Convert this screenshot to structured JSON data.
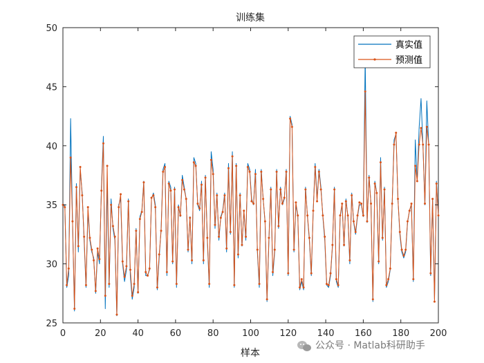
{
  "chart_data": {
    "type": "line",
    "title": "训练集",
    "xlabel": "样本",
    "ylabel": "",
    "xlim": [
      0,
      200
    ],
    "ylim": [
      25,
      50
    ],
    "xticks": [
      "0",
      "20",
      "40",
      "60",
      "80",
      "100",
      "120",
      "140",
      "160",
      "180",
      "200"
    ],
    "yticks": [
      "25",
      "30",
      "35",
      "40",
      "45",
      "50"
    ],
    "grid": false,
    "legend_position": "top-right",
    "series": [
      {
        "name": "真实值",
        "color": "#0072BD",
        "marker": "none",
        "values": [
          35.0,
          35.0,
          28.0,
          29.0,
          42.3,
          33.5,
          26.0,
          36.8,
          31.0,
          38.0,
          36.0,
          32.0,
          28.0,
          34.5,
          32.0,
          31.0,
          30.5,
          27.5,
          31.0,
          30.0,
          36.5,
          40.8,
          26.2,
          37.0,
          28.0,
          35.5,
          33.0,
          32.0,
          25.6,
          35.0,
          35.5,
          30.0,
          28.5,
          29.5,
          35.5,
          29.0,
          27.0,
          28.0,
          33.0,
          27.5,
          34.0,
          34.5,
          37.0,
          29.0,
          29.0,
          29.5,
          35.5,
          36.0,
          35.0,
          27.8,
          30.5,
          33.0,
          38.0,
          38.5,
          29.0,
          37.0,
          36.5,
          30.0,
          36.5,
          28.0,
          35.0,
          34.0,
          37.5,
          36.5,
          35.5,
          31.0,
          34.0,
          30.0,
          39.0,
          38.5,
          35.0,
          34.5,
          37.0,
          30.0,
          37.5,
          32.0,
          28.0,
          39.5,
          38.0,
          33.0,
          36.0,
          32.0,
          34.0,
          34.5,
          36.0,
          31.0,
          38.5,
          32.5,
          39.5,
          28.0,
          38.5,
          30.5,
          36.0,
          31.5,
          34.5,
          32.0,
          38.5,
          38.0,
          35.5,
          35.0,
          38.0,
          31.0,
          28.0,
          38.0,
          35.5,
          33.5,
          26.8,
          32.0,
          36.5,
          29.0,
          31.0,
          38.0,
          33.0,
          36.5,
          35.0,
          35.5,
          38.0,
          29.0,
          42.5,
          41.8,
          31.0,
          35.0,
          34.0,
          27.8,
          28.5,
          27.8,
          36.5,
          34.0,
          32.0,
          29.0,
          34.5,
          38.5,
          35.5,
          38.0,
          36.5,
          34.0,
          32.0,
          28.2,
          28.0,
          29.0,
          31.5,
          36.5,
          28.5,
          28.0,
          34.0,
          35.0,
          31.5,
          35.5,
          34.0,
          30.0,
          36.0,
          33.5,
          32.5,
          34.0,
          35.0,
          35.0,
          34.0,
          47.5,
          33.5,
          37.5,
          35.0,
          26.8,
          37.0,
          36.0,
          30.0,
          39.0,
          32.0,
          36.5,
          28.0,
          28.5,
          29.5,
          35.0,
          40.5,
          41.0,
          35.5,
          32.5,
          31.0,
          30.5,
          31.0,
          33.5,
          34.5,
          35.0,
          28.5,
          40.5,
          37.0,
          41.5,
          44.0,
          40.0,
          35.0,
          43.8,
          40.0,
          29.0,
          35.5,
          27.0,
          37.0,
          34.0
        ]
      },
      {
        "name": "预测值",
        "color": "#D95319",
        "marker": "dot",
        "values": [
          35.0,
          34.8,
          28.2,
          29.6,
          39.0,
          33.6,
          26.2,
          36.5,
          31.5,
          38.2,
          35.8,
          32.3,
          28.2,
          34.8,
          32.2,
          31.2,
          30.3,
          27.7,
          31.3,
          30.4,
          36.2,
          40.2,
          27.3,
          38.3,
          28.3,
          35.0,
          33.2,
          32.3,
          25.7,
          34.8,
          35.9,
          30.2,
          28.9,
          29.8,
          35.3,
          29.5,
          27.3,
          28.3,
          32.8,
          27.6,
          33.8,
          34.4,
          36.9,
          29.3,
          29.0,
          29.6,
          35.6,
          35.8,
          34.8,
          28.0,
          30.8,
          32.8,
          37.8,
          38.2,
          29.3,
          36.8,
          36.2,
          30.2,
          36.3,
          28.3,
          34.8,
          34.1,
          37.1,
          36.3,
          35.5,
          31.2,
          33.9,
          30.3,
          38.6,
          38.3,
          35.1,
          34.7,
          36.7,
          30.3,
          37.3,
          32.2,
          28.3,
          38.8,
          37.6,
          33.3,
          35.8,
          32.3,
          33.9,
          34.4,
          35.8,
          31.3,
          38.1,
          32.7,
          39.1,
          28.2,
          38.3,
          30.8,
          35.8,
          31.6,
          34.5,
          32.3,
          38.2,
          37.8,
          35.3,
          35.1,
          37.6,
          31.2,
          28.3,
          37.8,
          35.5,
          33.6,
          27.0,
          32.2,
          36.3,
          29.3,
          31.2,
          37.8,
          33.2,
          36.3,
          35.1,
          35.6,
          37.8,
          29.2,
          42.3,
          41.6,
          31.2,
          35.2,
          34.1,
          28.0,
          28.7,
          28.0,
          36.3,
          34.1,
          32.2,
          29.2,
          34.5,
          38.2,
          35.3,
          37.8,
          36.3,
          34.1,
          32.3,
          28.3,
          28.2,
          29.2,
          31.6,
          36.3,
          28.7,
          28.2,
          34.1,
          35.1,
          31.6,
          35.3,
          34.1,
          30.3,
          35.8,
          33.6,
          32.7,
          34.1,
          35.2,
          35.1,
          34.1,
          44.6,
          33.6,
          37.3,
          35.1,
          27.0,
          36.8,
          36.0,
          30.2,
          38.6,
          32.2,
          36.3,
          28.2,
          28.7,
          29.6,
          35.1,
          40.1,
          41.1,
          35.5,
          32.7,
          31.2,
          30.7,
          31.2,
          33.6,
          34.5,
          35.1,
          28.7,
          38.3,
          37.0,
          40.1,
          41.5,
          40.1,
          35.1,
          41.6,
          40.1,
          29.2,
          35.5,
          26.8,
          36.8,
          34.1
        ]
      }
    ]
  },
  "watermark": {
    "label": "公众号 · Matlab科研助手",
    "icon": "wechat-icon"
  }
}
